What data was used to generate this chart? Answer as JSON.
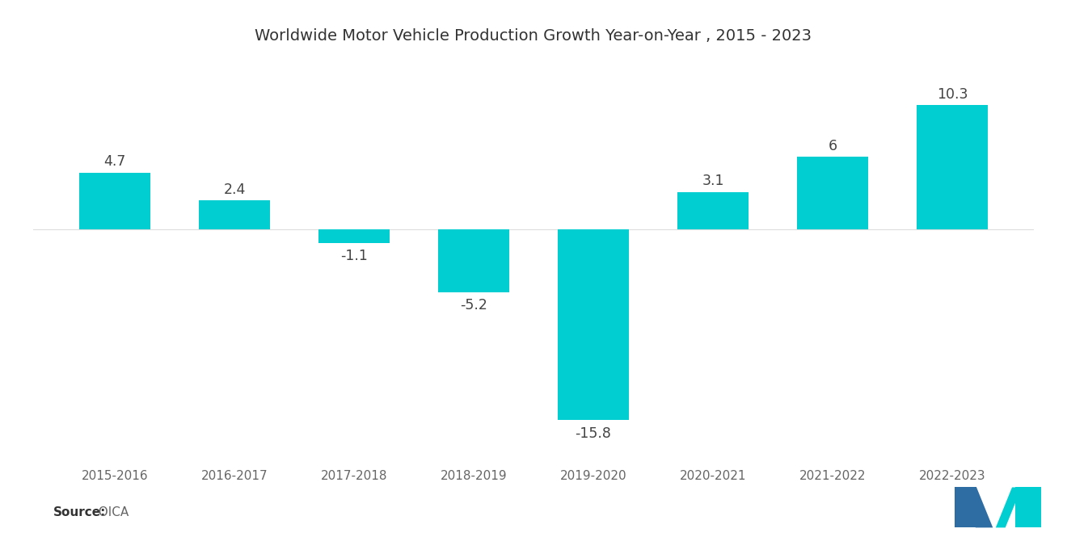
{
  "title": "Worldwide Motor Vehicle Production Growth Year-on-Year , 2015 - 2023",
  "categories": [
    "2015-2016",
    "2016-2017",
    "2017-2018",
    "2018-2019",
    "2019-2020",
    "2020-2021",
    "2021-2022",
    "2022-2023"
  ],
  "values": [
    4.7,
    2.4,
    -1.1,
    -5.2,
    -15.8,
    3.1,
    6.0,
    10.3
  ],
  "bar_color": "#00CED1",
  "background_color": "#ffffff",
  "source_label": "Source:",
  "source_value": "  OICA",
  "title_fontsize": 14,
  "label_fontsize": 12.5,
  "source_fontsize": 11,
  "tick_fontsize": 11,
  "ylim_min": -19,
  "ylim_max": 14,
  "bar_width": 0.6
}
